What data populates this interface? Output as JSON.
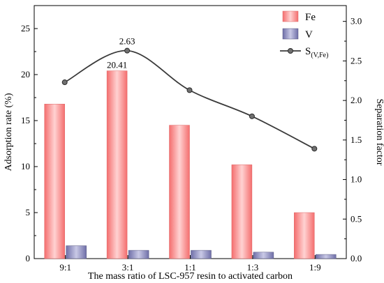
{
  "chart_data": {
    "type": "bar",
    "categories": [
      "9:1",
      "3:1",
      "1:1",
      "1:3",
      "1:9"
    ],
    "series": [
      {
        "name": "Fe",
        "kind": "bar",
        "axis": "left",
        "values": [
          16.8,
          20.41,
          14.5,
          10.2,
          5.0
        ],
        "color": "#f46e6e"
      },
      {
        "name": "V",
        "kind": "bar",
        "axis": "left",
        "values": [
          1.4,
          0.9,
          0.9,
          0.7,
          0.45
        ],
        "color": "#8080b8"
      },
      {
        "name": "S",
        "name_sub": "(V,Fe)",
        "kind": "line",
        "axis": "right",
        "values": [
          2.23,
          2.63,
          2.13,
          1.8,
          1.39
        ],
        "color": "#3a3a3a"
      }
    ],
    "annotations": [
      {
        "series": "Fe",
        "index": 1,
        "text": "20.41"
      },
      {
        "series": "S",
        "index": 1,
        "text": "2.63"
      }
    ],
    "xlabel": "The mass ratio of LSC-957 resin to activated carbon",
    "ylabel": "Adsorption rate (%)",
    "y2label": "Separation factor",
    "ylim": [
      0,
      27.5
    ],
    "y2lim": [
      0,
      3.2
    ],
    "yticks": [
      0,
      5,
      10,
      15,
      20,
      25
    ],
    "y2ticks": [
      "0.0",
      "0.5",
      "1.0",
      "1.5",
      "2.0",
      "2.5",
      "3.0"
    ],
    "legend_position": "top-right",
    "grid": false
  }
}
